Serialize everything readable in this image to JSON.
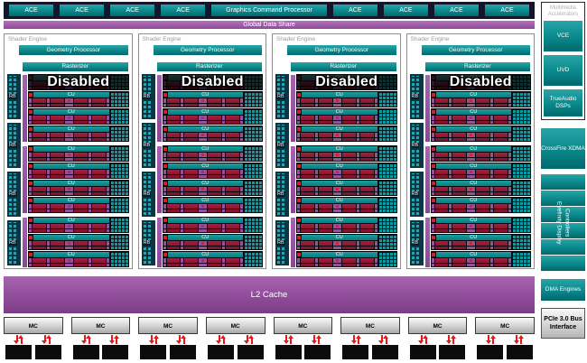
{
  "top": {
    "aces_left": [
      "ACE",
      "ACE",
      "ACE",
      "ACE"
    ],
    "gcp_label": "Graphics Command Processor",
    "aces_right": [
      "ACE",
      "ACE",
      "ACE",
      "ACE"
    ],
    "gds_label": "Global Data Share"
  },
  "shader_engine": {
    "label": "Shader Engine",
    "geometry_label": "Geometry Processor",
    "rasterizer_label": "Rasterizer",
    "rb_label": "RB",
    "cu_label": "CU",
    "disabled_label": "Disabled",
    "engine_count": 4,
    "rb_per_engine": 4,
    "cu_groups": [
      [
        "disabled",
        "cu",
        "cu",
        "cu"
      ],
      [
        "cu",
        "cu",
        "cu",
        "cu"
      ],
      [
        "cu",
        "cu",
        "cu"
      ]
    ]
  },
  "l2_label": "L2 Cache",
  "memory": {
    "mc_label": "MC",
    "controller_count": 8,
    "chips_per_controller": 2
  },
  "right_column": {
    "multimedia_label": "Multimedia Accelerators",
    "vce_label": "VCE",
    "uvd_label": "UVD",
    "trueaudio_label": "TrueAudio DSPs",
    "crossfire_label": "CrossFire XDMA",
    "eyefinity_label": "Eyefinity Display Controllers",
    "dma_label": "DMA Engines",
    "pcie_label": "PCIe 3.0 Bus Interface"
  },
  "colors": {
    "teal": "#0d8e91",
    "purple": "#8d4b97",
    "navy_strip": "#15152b",
    "maroon": "#8c1733",
    "arrow_red": "#e31818",
    "chip_black": "#0b0b0b",
    "disabled_text": "#ffffff"
  }
}
